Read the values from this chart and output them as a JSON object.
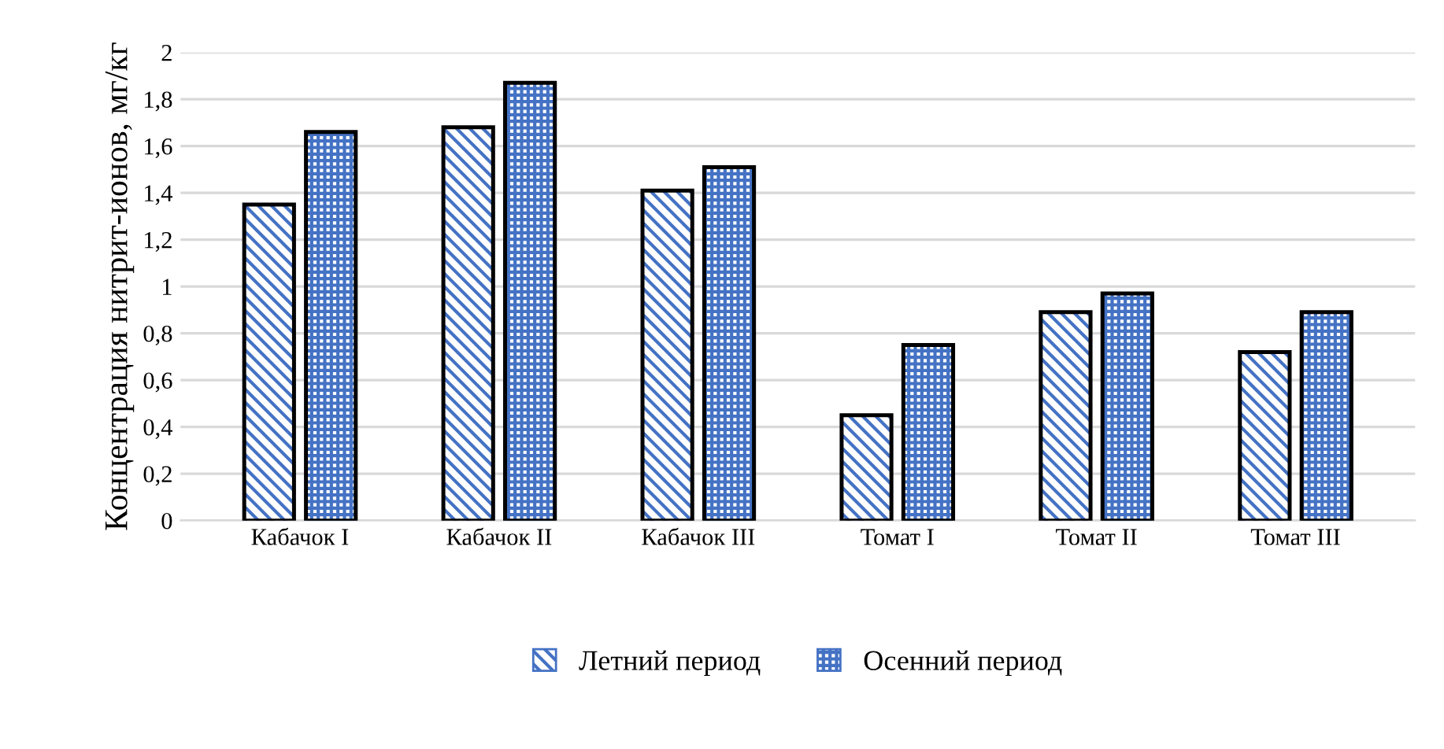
{
  "chart_data": {
    "type": "bar",
    "ylabel": "Концентрация нитрит-ионов, мг/кг",
    "categories": [
      "Кабачок I",
      "Кабачок II",
      "Кабачок III",
      "Томат I",
      "Томат II",
      "Томат III"
    ],
    "series": [
      {
        "name": "Летний период",
        "color": "#4472c4",
        "values": [
          1.35,
          1.68,
          1.41,
          0.45,
          0.89,
          0.72
        ]
      },
      {
        "name": "Осенний период",
        "color": "#4472c4",
        "values": [
          1.66,
          1.87,
          1.51,
          0.75,
          0.97,
          0.89
        ]
      }
    ],
    "ylim": [
      0,
      2
    ],
    "yticks": [
      0,
      {
        "value": 0.2,
        "label": "0,2"
      },
      {
        "value": 0.4,
        "label": "0,4"
      },
      {
        "value": 0.6,
        "label": "0,6"
      },
      {
        "value": 0.8,
        "label": "0,8"
      },
      1,
      {
        "value": 1.2,
        "label": "1,2"
      },
      {
        "value": 1.4,
        "label": "1,4"
      },
      {
        "value": 1.6,
        "label": "1,6"
      },
      {
        "value": 1.8,
        "label": "1,8"
      },
      2
    ],
    "grid": "y",
    "legend": "bottom"
  }
}
